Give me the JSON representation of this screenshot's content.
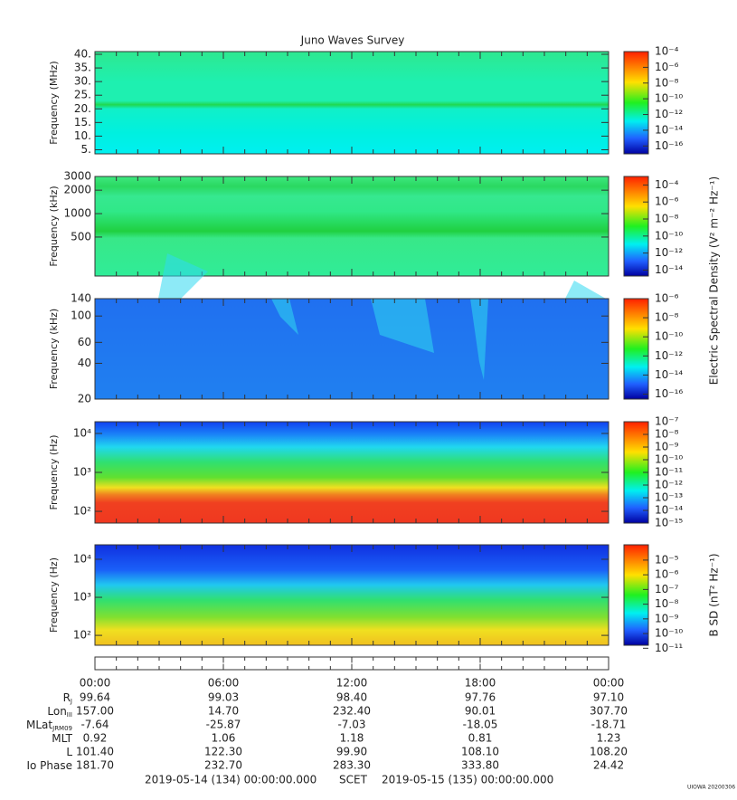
{
  "chart_data": [
    {
      "type": "heatmap",
      "title": "Juno Waves Survey",
      "ylabel": "Frequency (MHz)",
      "ylim": [
        3.5,
        41
      ],
      "log": false,
      "yticks": [
        {
          "value": 5,
          "label": "5."
        },
        {
          "value": 10,
          "label": "10."
        },
        {
          "value": 15,
          "label": "15."
        },
        {
          "value": 20,
          "label": "20."
        },
        {
          "value": 25,
          "label": "25."
        },
        {
          "value": 30,
          "label": "30."
        },
        {
          "value": 35,
          "label": "35."
        },
        {
          "value": 40,
          "label": "40."
        }
      ],
      "colorbar": {
        "log": true,
        "clim": [
          1e-17,
          0.0001
        ],
        "ticks": [
          {
            "value": 0.0001,
            "label": "10⁻⁴"
          },
          {
            "value": 1e-06,
            "label": "10⁻⁶"
          },
          {
            "value": 1e-08,
            "label": "10⁻⁸"
          },
          {
            "value": 1e-10,
            "label": "10⁻¹⁰"
          },
          {
            "value": 1e-12,
            "label": "10⁻¹²"
          },
          {
            "value": 1e-14,
            "label": "10⁻¹⁴"
          },
          {
            "value": 1e-16,
            "label": "10⁻¹⁶"
          }
        ]
      }
    },
    {
      "type": "heatmap",
      "ylabel": "Frequency (kHz)",
      "ylim": [
        158,
        3000
      ],
      "log": true,
      "yticks": [
        500,
        1000,
        2000,
        3000
      ],
      "colorbar": {
        "log": true,
        "clim": [
          2e-15,
          0.001
        ],
        "label": "Electric Spectral Density (V² m⁻² Hz⁻¹)",
        "ticks": [
          {
            "value": 0.0001,
            "label": "10⁻⁴"
          },
          {
            "value": 1e-06,
            "label": "10⁻⁶"
          },
          {
            "value": 1e-08,
            "label": "10⁻⁸"
          },
          {
            "value": 1e-10,
            "label": "10⁻¹⁰"
          },
          {
            "value": 1e-12,
            "label": "10⁻¹²"
          },
          {
            "value": 1e-14,
            "label": "10⁻¹⁴"
          }
        ]
      }
    },
    {
      "type": "heatmap",
      "ylabel": "Frequency (kHz)",
      "ylim": [
        20,
        140
      ],
      "log": true,
      "yticks": [
        20,
        40,
        60,
        100,
        140
      ],
      "colorbar": {
        "log": true,
        "clim": [
          3e-17,
          1e-06
        ],
        "ticks": [
          {
            "value": 1e-06,
            "label": "10⁻⁶"
          },
          {
            "value": 1e-08,
            "label": "10⁻⁸"
          },
          {
            "value": 1e-10,
            "label": "10⁻¹⁰"
          },
          {
            "value": 1e-12,
            "label": "10⁻¹²"
          },
          {
            "value": 1e-14,
            "label": "10⁻¹⁴"
          },
          {
            "value": 1e-16,
            "label": "10⁻¹⁶"
          }
        ]
      }
    },
    {
      "type": "heatmap",
      "ylabel": "Frequency (Hz)",
      "ylim": [
        50,
        20000
      ],
      "log": true,
      "yticks": [
        {
          "value": 100,
          "label": "10²"
        },
        {
          "value": 1000,
          "label": "10³"
        },
        {
          "value": 10000,
          "label": "10⁴"
        }
      ],
      "colorbar": {
        "log": true,
        "clim": [
          1e-15,
          1e-07
        ],
        "ticks": [
          {
            "value": 1e-07,
            "label": "10⁻⁷"
          },
          {
            "value": 1e-08,
            "label": "10⁻⁸"
          },
          {
            "value": 1e-09,
            "label": "10⁻⁹"
          },
          {
            "value": 1e-10,
            "label": "10⁻¹⁰"
          },
          {
            "value": 1e-11,
            "label": "10⁻¹¹"
          },
          {
            "value": 1e-12,
            "label": "10⁻¹²"
          },
          {
            "value": 1e-13,
            "label": "10⁻¹³"
          },
          {
            "value": 1e-14,
            "label": "10⁻¹⁴"
          },
          {
            "value": 1e-15,
            "label": "10⁻¹⁵"
          }
        ]
      }
    },
    {
      "type": "heatmap",
      "ylabel": "Frequency (Hz)",
      "ylim": [
        55,
        24000
      ],
      "log": true,
      "yticks": [
        {
          "value": 100,
          "label": "10²"
        },
        {
          "value": 1000,
          "label": "10³"
        },
        {
          "value": 10000,
          "label": "10⁴"
        }
      ],
      "colorbar": {
        "log": true,
        "clim": [
          1.6e-11,
          0.00011
        ],
        "label": "B SD (nT² Hz⁻¹)",
        "ticks": [
          {
            "value": 1e-05,
            "label": "10⁻⁵"
          },
          {
            "value": 1e-06,
            "label": "10⁻⁶"
          },
          {
            "value": 1e-07,
            "label": "10⁻⁷"
          },
          {
            "value": 1e-08,
            "label": "10⁻⁸"
          },
          {
            "value": 1e-09,
            "label": "10⁻⁹"
          },
          {
            "value": 1e-10,
            "label": "10⁻¹⁰"
          },
          {
            "value": 1e-11,
            "label": "10⁻¹¹"
          }
        ]
      }
    }
  ],
  "time_axis": {
    "xlim": [
      0,
      24
    ],
    "xticks": [
      {
        "value": 0,
        "label": "00:00"
      },
      {
        "value": 6,
        "label": "06:00"
      },
      {
        "value": 12,
        "label": "12:00"
      },
      {
        "value": 18,
        "label": "18:00"
      },
      {
        "value": 24,
        "label": "00:00"
      }
    ]
  },
  "ephemeris": [
    {
      "name": "R",
      "sub": "J",
      "values": [
        "99.64",
        "99.03",
        "98.40",
        "97.76",
        "97.10"
      ]
    },
    {
      "name": "Lon",
      "sub": "III",
      "values": [
        "157.00",
        "14.70",
        "232.40",
        "90.01",
        "307.70"
      ]
    },
    {
      "name": "MLat",
      "sub": "JRM09",
      "values": [
        "-7.64",
        "-25.87",
        "-7.03",
        "-18.05",
        "-18.71"
      ]
    },
    {
      "name": "MLT",
      "values": [
        "0.92",
        "1.06",
        "1.18",
        "0.81",
        "1.23"
      ]
    },
    {
      "name": "L",
      "values": [
        "101.40",
        "122.30",
        "99.90",
        "108.10",
        "108.20"
      ]
    },
    {
      "name": "Io Phase",
      "values": [
        "181.70",
        "232.70",
        "283.30",
        "333.80",
        "24.42"
      ]
    }
  ],
  "footer": {
    "start": "2019-05-14 (134) 00:00:00.000",
    "mid": "SCET",
    "end": "2019-05-15 (135) 00:00:00.000",
    "stamp": "UIOWA 20200306"
  }
}
